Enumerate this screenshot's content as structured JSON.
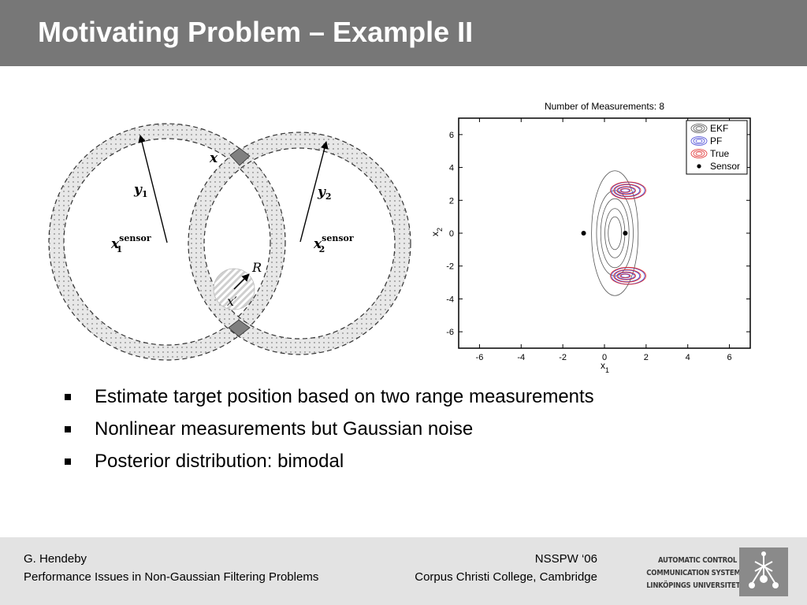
{
  "slide": {
    "title": "Motivating Problem – Example II"
  },
  "illustration": {
    "labels": {
      "y1": "y",
      "y1_sub": "1",
      "y2": "y",
      "y2_sub": "2",
      "x": "x",
      "x1_sensor": "x",
      "x1_sensor_sub": "1",
      "x1_sensor_sup": "sensor",
      "x2_sensor": "x",
      "x2_sensor_sub": "2",
      "x2_sensor_sup": "sensor",
      "R": "R",
      "x_prime": "x′"
    },
    "colors": {
      "ring_fill": "#e8e8e8",
      "intersection_fill": "#808080"
    }
  },
  "chart_data": {
    "type": "contour",
    "title": "Number of Measurements: 8",
    "xlabel": "x",
    "xlabel_sub": "1",
    "ylabel": "x",
    "ylabel_sub": "2",
    "xlim": [
      -7,
      7
    ],
    "ylim": [
      -7,
      7
    ],
    "xticks": [
      -6,
      -4,
      -2,
      0,
      2,
      4,
      6
    ],
    "yticks": [
      6,
      4,
      2,
      0,
      -2,
      -4,
      -6
    ],
    "legend_position": "top-right",
    "series": [
      {
        "name": "EKF",
        "color": "#555555",
        "mean": [
          0.5,
          0
        ],
        "sx_levels": [
          0.08,
          0.12,
          0.17,
          0.22,
          0.28
        ],
        "sy_levels": [
          1.0,
          1.5,
          2.1,
          2.6,
          3.8
        ]
      },
      {
        "name": "PF",
        "color": "#4a4ad6",
        "modes": [
          [
            1.0,
            2.6
          ],
          [
            1.0,
            -2.6
          ]
        ],
        "rx_levels": [
          0.2,
          0.4,
          0.6,
          0.8
        ],
        "ry_levels": [
          0.1,
          0.2,
          0.35,
          0.5
        ]
      },
      {
        "name": "True",
        "color": "#e03030",
        "modes": [
          [
            1.0,
            2.6
          ],
          [
            1.0,
            -2.6
          ]
        ],
        "rx_levels": [
          0.25,
          0.45,
          0.65,
          0.85
        ],
        "ry_levels": [
          0.12,
          0.24,
          0.38,
          0.52
        ]
      }
    ],
    "sensors": {
      "name": "Sensor",
      "points": [
        [
          -1,
          0
        ],
        [
          1,
          0
        ]
      ]
    }
  },
  "bullets": [
    "Estimate target position based on two range measurements",
    "Nonlinear measurements but Gaussian noise",
    "Posterior distribution: bimodal"
  ],
  "footer": {
    "author": "G. Hendeby",
    "talk_title": "Performance Issues in Non-Gaussian Filtering Problems",
    "conference": "NSSPW ‘06",
    "venue": "Corpus Christi College, Cambridge",
    "logo_lines": [
      "AUTOMATIC CONTROL",
      "COMMUNICATION SYSTEMS",
      "LINKÖPINGS UNIVERSITET"
    ]
  }
}
